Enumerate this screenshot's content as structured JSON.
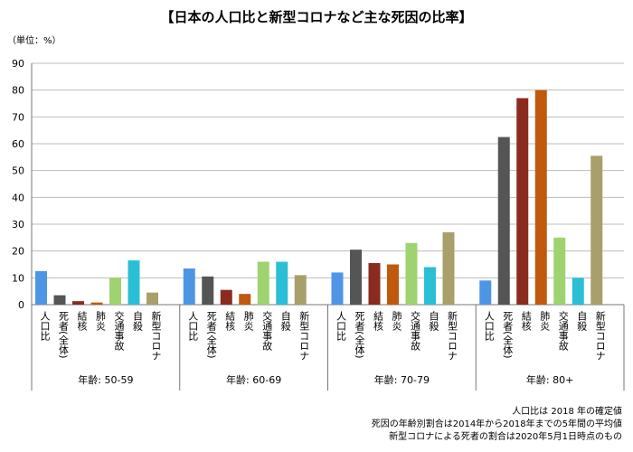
{
  "chart_data": {
    "type": "bar",
    "title": "【日本の人口比と新型コロナなど主な死因の比率】",
    "unit_label": "（単位：%）",
    "ylim": [
      0,
      90
    ],
    "yticks": [
      0,
      10,
      20,
      30,
      40,
      50,
      60,
      70,
      80,
      90
    ],
    "grid": true,
    "categories": [
      "人口比",
      "死者(全体)",
      "結核",
      "肺炎",
      "交通事故",
      "自殺",
      "新型コロナ"
    ],
    "colors": [
      "#4f95e6",
      "#555555",
      "#8b2a1f",
      "#c0590e",
      "#9ed370",
      "#2bbfd6",
      "#a89f6a"
    ],
    "groups": [
      {
        "label": "年齢: 50-59",
        "values": [
          12.5,
          3.5,
          1.3,
          0.8,
          10,
          16.5,
          4.5
        ]
      },
      {
        "label": "年齢: 60-69",
        "values": [
          13.5,
          10.5,
          5.5,
          4,
          16,
          16,
          11
        ]
      },
      {
        "label": "年齢: 70-79",
        "values": [
          12,
          20.5,
          15.5,
          15,
          23,
          14,
          27
        ]
      },
      {
        "label": "年齢: 80+",
        "values": [
          9,
          62.5,
          77,
          80,
          25,
          10,
          55.5
        ]
      }
    ]
  },
  "notes": [
    "人口比は 2018 年の確定値",
    "死因の年齢別割合は2014年から2018年までの5年間の平均値",
    "新型コロナによる死者の割合は2020年5月1日時点のもの"
  ]
}
